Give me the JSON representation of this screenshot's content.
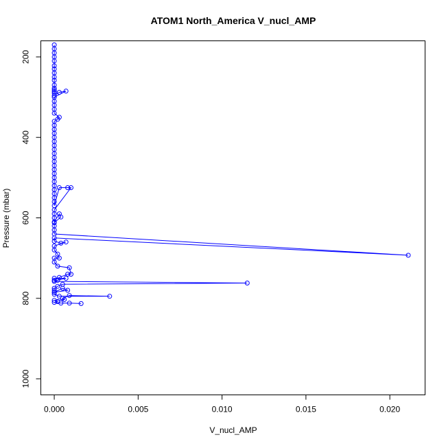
{
  "chart_data": {
    "type": "line",
    "title": "ATOM1 North_America V_nucl_AMP",
    "xlabel": "V_nucl_AMP",
    "ylabel": "Pressure (mbar)",
    "xlim": [
      -0.0008,
      0.0221
    ],
    "ylim": [
      1040,
      160
    ],
    "y_reversed": true,
    "xticks": [
      0.0,
      0.005,
      0.01,
      0.015,
      0.02
    ],
    "xtick_labels": [
      "0.000",
      "0.005",
      "0.010",
      "0.015",
      "0.020"
    ],
    "yticks": [
      200,
      400,
      600,
      800,
      1000
    ],
    "ytick_labels": [
      "200",
      "400",
      "600",
      "800",
      "1000"
    ],
    "grid": false,
    "series_color": "#0000ff",
    "series": [
      {
        "x": [
          0,
          0,
          0,
          0,
          0,
          0,
          0,
          0,
          0,
          0,
          0,
          0,
          0,
          0,
          0,
          0,
          0.0003,
          0.0007,
          0,
          0,
          0,
          0,
          0,
          0.0003,
          0.0002,
          0,
          0,
          0,
          0,
          0,
          0,
          0,
          0,
          0,
          0,
          0,
          0,
          0,
          0,
          0,
          0,
          0,
          0,
          0,
          0,
          0,
          0,
          0.0003,
          0.0008,
          0.001,
          0,
          0,
          0,
          0,
          0.0003,
          0.0004,
          0,
          0,
          0,
          0,
          0.0211,
          0,
          0,
          0.0004,
          0.0007,
          0,
          0,
          0.0002,
          0.0003,
          0,
          0,
          0.0002,
          0.0009,
          0.001,
          0.0008,
          0.0003,
          0,
          0,
          0.0007,
          0.0002,
          0,
          0.0115,
          0.0005,
          0.0002,
          0,
          0,
          0,
          0.0008,
          0.0005,
          0,
          0,
          0.0003,
          0.0033,
          0.0009,
          0.0005,
          0.0006,
          0,
          0.0002,
          0,
          0.0004,
          0.0009,
          0.0016
        ],
        "y": [
          170,
          180,
          190,
          200,
          210,
          222,
          230,
          240,
          250,
          258,
          270,
          278,
          282,
          286,
          290,
          296,
          288,
          285,
          300,
          310,
          320,
          330,
          340,
          350,
          355,
          360,
          370,
          380,
          390,
          400,
          410,
          420,
          430,
          440,
          450,
          460,
          470,
          480,
          490,
          500,
          510,
          520,
          530,
          540,
          550,
          560,
          570,
          525,
          525,
          525,
          580,
          590,
          600,
          610,
          590,
          598,
          612,
          620,
          630,
          640,
          693,
          650,
          658,
          663,
          660,
          670,
          680,
          690,
          700,
          700,
          710,
          720,
          724,
          740,
          740,
          748,
          755,
          750,
          750,
          755,
          758,
          762,
          765,
          770,
          775,
          780,
          785,
          780,
          775,
          785,
          790,
          795,
          795,
          793,
          800,
          803,
          805,
          808,
          810,
          812,
          812,
          813
        ]
      }
    ]
  }
}
